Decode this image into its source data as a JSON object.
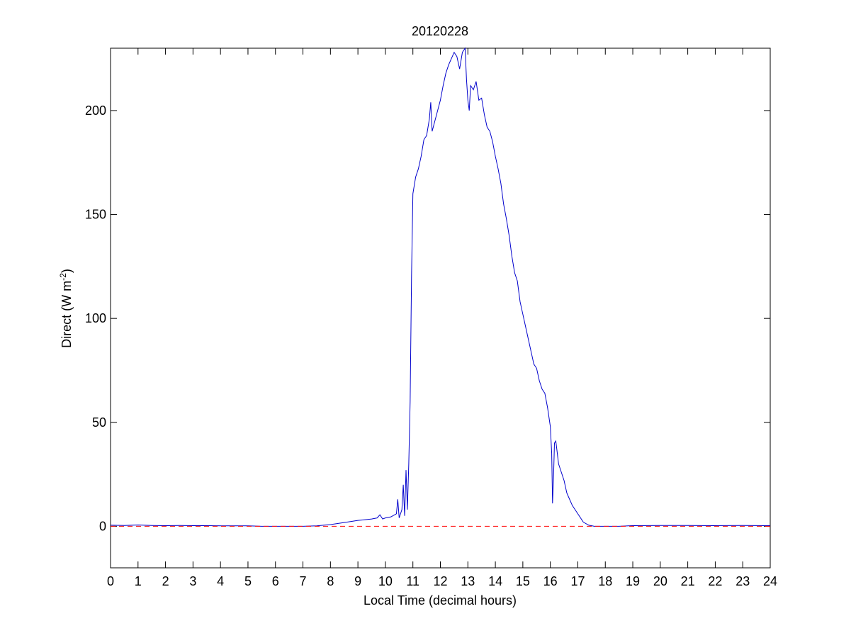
{
  "chart_data": {
    "type": "line",
    "title": "20120228",
    "xlabel": "Local Time (decimal hours)",
    "ylabel_parts": [
      "Direct (W m",
      "-2",
      ")"
    ],
    "xlim": [
      0,
      24
    ],
    "xticks": [
      0,
      1,
      2,
      3,
      4,
      5,
      6,
      7,
      8,
      9,
      10,
      11,
      12,
      13,
      14,
      15,
      16,
      17,
      18,
      19,
      20,
      21,
      22,
      23,
      24
    ],
    "ylim": [
      -20,
      230
    ],
    "yticks": [
      0,
      50,
      100,
      150,
      200
    ],
    "grid": false,
    "reference_line": {
      "y": 0,
      "color": "#ff0000",
      "style": "dashed"
    },
    "series": [
      {
        "color": "#0000cc",
        "x": [
          0,
          0.5,
          1,
          1.5,
          2,
          2.5,
          3,
          3.5,
          4,
          4.5,
          5,
          5.5,
          6,
          6.5,
          7,
          7.5,
          8,
          8.5,
          9,
          9.5,
          9.7,
          9.8,
          9.9,
          10,
          10.2,
          10.4,
          10.45,
          10.5,
          10.6,
          10.65,
          10.7,
          10.75,
          10.8,
          10.85,
          10.9,
          10.95,
          11,
          11.1,
          11.2,
          11.3,
          11.4,
          11.5,
          11.6,
          11.65,
          11.7,
          11.8,
          11.9,
          12,
          12.1,
          12.2,
          12.3,
          12.4,
          12.5,
          12.6,
          12.7,
          12.8,
          12.9,
          12.95,
          13,
          13.05,
          13.1,
          13.2,
          13.3,
          13.4,
          13.5,
          13.6,
          13.7,
          13.8,
          13.9,
          14,
          14.1,
          14.2,
          14.3,
          14.4,
          14.5,
          14.6,
          14.7,
          14.8,
          14.9,
          15,
          15.1,
          15.2,
          15.3,
          15.4,
          15.5,
          15.6,
          15.7,
          15.8,
          15.9,
          16,
          16.05,
          16.08,
          16.12,
          16.15,
          16.2,
          16.3,
          16.4,
          16.5,
          16.6,
          16.7,
          16.8,
          17,
          17.2,
          17.4,
          17.6,
          18,
          18.5,
          19,
          20,
          21,
          22,
          23,
          24
        ],
        "values": [
          0.5,
          0.4,
          0.6,
          0.4,
          0.3,
          0.4,
          0.3,
          0.3,
          0.2,
          0.2,
          0.2,
          0,
          0,
          0,
          0,
          0.2,
          0.8,
          1.8,
          2.8,
          3.5,
          4,
          5.5,
          3.5,
          4,
          4.5,
          6,
          13,
          4,
          8,
          20,
          5,
          27,
          8,
          30,
          60,
          120,
          160,
          168,
          172,
          178,
          186,
          188,
          196,
          204,
          190,
          195,
          200,
          205,
          212,
          218,
          222,
          225,
          228,
          226,
          220,
          228,
          230,
          215,
          205,
          200,
          212,
          210,
          214,
          205,
          206,
          198,
          192,
          190,
          185,
          178,
          172,
          165,
          155,
          148,
          140,
          130,
          122,
          118,
          108,
          102,
          96,
          90,
          84,
          78,
          76,
          70,
          66,
          64,
          57,
          48,
          35,
          11,
          25,
          40,
          41,
          30,
          26,
          22,
          16,
          13,
          10,
          6,
          2,
          0.5,
          0,
          0,
          0,
          0.3,
          0.4,
          0.4,
          0.3,
          0.4,
          0.3
        ]
      }
    ]
  }
}
